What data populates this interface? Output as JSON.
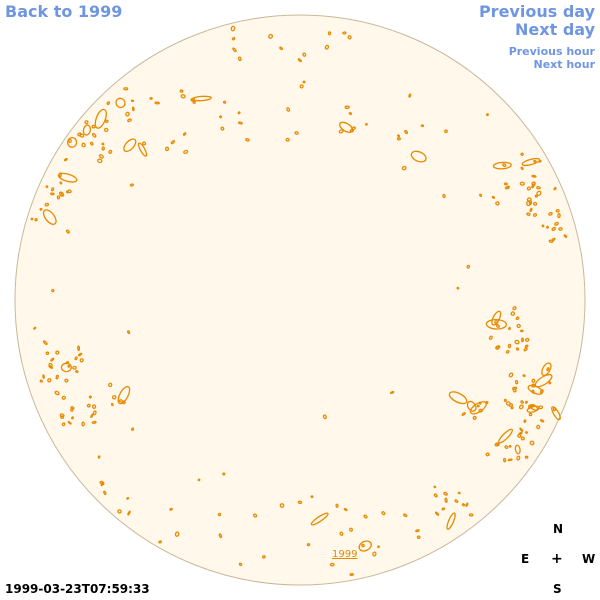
{
  "nav": {
    "back_label": "Back to 1999",
    "prev_day_label": "Previous day",
    "next_day_label": "Next day",
    "prev_hour_label": "Previous hour",
    "next_hour_label": "Next hour"
  },
  "image": {
    "timestamp": "1999-03-23T07:59:33",
    "year_label": "1999"
  },
  "compass": {
    "north": "N",
    "east": "E",
    "center": "+",
    "west": "W",
    "south": "S"
  },
  "colors": {
    "link": "#6f96e0",
    "disk_fill": "#fff8eb",
    "disk_stroke": "#c8b89a",
    "feature": "#e88a00"
  }
}
